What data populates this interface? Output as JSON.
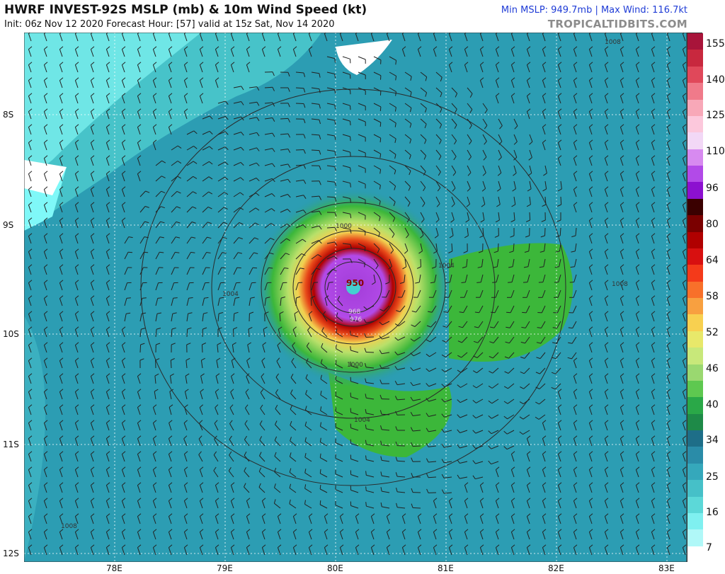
{
  "header": {
    "title": "HWRF INVEST-92S MSLP (mb) & 10m Wind Speed (kt)",
    "subtitle": "Init: 06z Nov 12 2020   Forecast Hour: [57]   valid at 15z Sat, Nov 14 2020",
    "stats": "Min MSLP: 949.7mb  |  Max Wind: 116.7kt",
    "credit": "TROPICALTIDBITS.COM"
  },
  "map": {
    "lat_labels": [
      "8S",
      "9S",
      "10S",
      "11S",
      "12S"
    ],
    "lon_labels": [
      "78E",
      "79E",
      "80E",
      "81E",
      "82E",
      "83E"
    ],
    "isobar_labels": [
      "1008",
      "1004",
      "1004",
      "1000",
      "1000",
      "1004",
      "1008",
      "1008",
      "950",
      "976",
      "968"
    ],
    "center_pressure": "950",
    "colors": {
      "land_white": "#ffffff",
      "calm": "#7ff8f8",
      "light": "#40bfc4",
      "moderate": "#2a98b0",
      "tropical_storm": "#3cb73a",
      "gale": "#b8e06a",
      "storm": "#f2e85a",
      "strong": "#d92a1c",
      "core": "#a23dd8",
      "isobar": "#333333"
    }
  },
  "colorbar": {
    "labels": [
      "155",
      "140",
      "125",
      "110",
      "96",
      "80",
      "64",
      "58",
      "52",
      "46",
      "40",
      "34",
      "25",
      "16",
      "7"
    ],
    "colors": [
      "#a8143a",
      "#c8283e",
      "#e0485a",
      "#f07a8a",
      "#f8a8b8",
      "#fcc8dc",
      "#f2d8f6",
      "#d78af0",
      "#b24ae8",
      "#8c10d0",
      "#3a0000",
      "#7a0000",
      "#b00000",
      "#d81010",
      "#f43a1a",
      "#f8702a",
      "#f8a040",
      "#f8d050",
      "#e8e86a",
      "#c8e87a",
      "#9ad870",
      "#5ec850",
      "#2aa848",
      "#1e8a48",
      "#1e6e88",
      "#2a8ca8",
      "#35a8bb",
      "#46c0c8",
      "#5cd8d8",
      "#7ff0f0",
      "#b0f8f8",
      "#ffffff"
    ]
  }
}
